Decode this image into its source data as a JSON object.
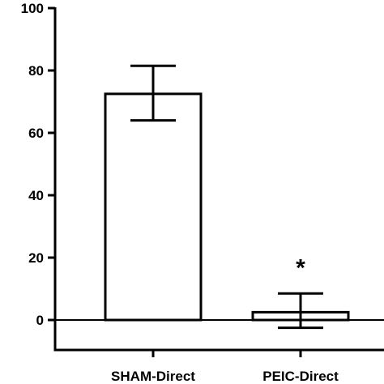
{
  "chart_data": {
    "type": "bar",
    "categories": [
      "SHAM-Direct",
      "PEIC-Direct"
    ],
    "values": [
      72.5,
      2.5
    ],
    "errors": [
      {
        "upper": 81.5,
        "lower": 64
      },
      {
        "upper": 8.5,
        "lower": -2.5
      }
    ],
    "annotations": [
      {
        "category": "PEIC-Direct",
        "text": "*"
      }
    ],
    "yticks": [
      0,
      20,
      40,
      60,
      80,
      100
    ],
    "ylim": [
      -10,
      100
    ],
    "grid": false,
    "colors": {
      "bar_fill": "#ffffff",
      "bar_stroke": "#000000",
      "axis": "#000000"
    }
  }
}
